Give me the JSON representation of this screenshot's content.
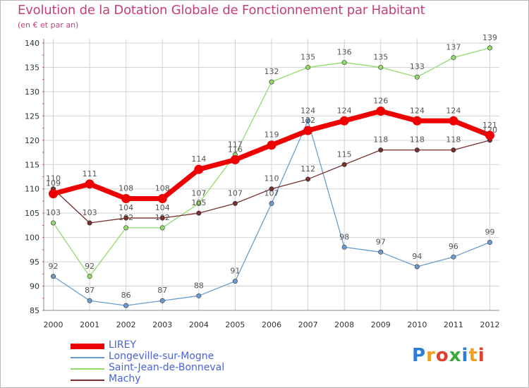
{
  "title": "Evolution de la Dotation Globale de Fonctionnement par Habitant",
  "subtitle": "(en € et par an)",
  "logo": {
    "text": "Proxiti",
    "colors": [
      "#2a7fd4",
      "#f0a020",
      "#e0402a",
      "#3aa83a",
      "#2a7fd4",
      "#f0a020",
      "#e0402a"
    ]
  },
  "chart_data": {
    "type": "line",
    "title": "Evolution de la Dotation Globale de Fonctionnement par Habitant",
    "subtitle": "(en € et par an)",
    "xlabel": "",
    "ylabel": "",
    "x": [
      "2000",
      "2001",
      "2002",
      "2003",
      "2004",
      "2005",
      "2006",
      "2007",
      "2008",
      "2009",
      "2010",
      "2011",
      "2012"
    ],
    "ylim": [
      85,
      140
    ],
    "yticks": [
      85,
      90,
      95,
      100,
      105,
      110,
      115,
      120,
      125,
      130,
      135,
      140
    ],
    "grid": true,
    "legend_position": "bottom-left",
    "series": [
      {
        "name": "LIREY",
        "color": "#ee0000",
        "emphasis": "thick",
        "values": [
          109,
          111,
          108,
          108,
          114,
          116,
          119,
          122,
          124,
          126,
          124,
          124,
          121
        ]
      },
      {
        "name": "Longeville-sur-Mogne",
        "color": "#6b9ccf",
        "emphasis": "normal",
        "values": [
          92,
          87,
          86,
          87,
          88,
          91,
          107,
          124,
          98,
          97,
          94,
          96,
          99
        ]
      },
      {
        "name": "Saint-Jean-de-Bonneval",
        "color": "#92da6c",
        "emphasis": "normal",
        "values": [
          103,
          92,
          102,
          102,
          107,
          117,
          132,
          135,
          136,
          135,
          133,
          137,
          139
        ]
      },
      {
        "name": "Machy",
        "color": "#7a2f2f",
        "emphasis": "normal",
        "values": [
          110,
          103,
          104,
          104,
          105,
          107,
          110,
          112,
          115,
          118,
          118,
          118,
          120
        ]
      }
    ]
  }
}
